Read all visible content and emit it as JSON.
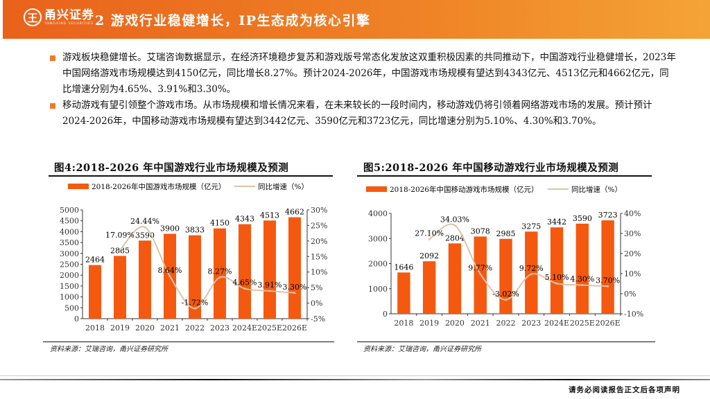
{
  "header": {
    "logo_mark": "王",
    "logo_cn": "甬兴证券",
    "logo_en": "YONGXING SECURITIES",
    "title": "2 游戏行业稳健增长，IP生态成为核心引擎"
  },
  "colors": {
    "bar": "#f4590f",
    "line": "#dcc3a8",
    "accent": "#ee7a2a"
  },
  "bullets": [
    "游戏板块稳健增长。艾瑞咨询数据显示，在经济环境稳步复苏和游戏版号常态化发放这双重积极因素的共同推动下，中国游戏行业稳健增长，2023年中国网络游戏市场规模达到4150亿元，同比增长8.27%。预计2024-2026年，中国游戏市场规模有望达到4343亿元、4513亿元和4662亿元，同比增速分别为4.65%、3.91%和3.30%。",
    "移动游戏有望引领整个游戏市场。从市场规模和增长情况来看，在未来较长的一段时间内，移动游戏仍将引领着网络游戏市场的发展。预计预计2024-2026年，中国移动游戏市场规模有望达到3442亿元、3590亿元和3723亿元，同比增速分别为5.10%、4.30%和3.70%。"
  ],
  "chart_data": [
    {
      "type": "bar",
      "title": "图4:2018-2026 年中国游戏行业市场规模及预测",
      "source": "资料来源：艾瑞咨询，甬兴证券研究所",
      "categories": [
        "2018",
        "2019",
        "2020",
        "2021",
        "2022",
        "2023",
        "2024E",
        "2025E",
        "2026E"
      ],
      "series": [
        {
          "name": "2018-2026年中国游戏市场规模（亿元）",
          "type": "bar",
          "axis": "left",
          "values": [
            2464,
            2885,
            3590,
            3900,
            3833,
            4150,
            4343,
            4513,
            4662
          ]
        },
        {
          "name": "同比增速（%）",
          "type": "line",
          "axis": "right",
          "values": [
            null,
            17.09,
            24.44,
            8.64,
            -1.72,
            8.27,
            4.65,
            3.91,
            3.3
          ]
        }
      ],
      "ylim": [
        0,
        5000
      ],
      "yticks": [
        0,
        500,
        1000,
        1500,
        2000,
        2500,
        3000,
        3500,
        4000,
        4500,
        5000
      ],
      "y2lim": [
        -5,
        30
      ],
      "y2ticks": [
        -5,
        0,
        5,
        10,
        15,
        20,
        25,
        30
      ],
      "grid": false,
      "legend": "top"
    },
    {
      "type": "bar",
      "title": "图5:2018-2026 年中国移动游戏行业市场规模及预测",
      "source": "资料来源：艾瑞咨询，甬兴证券研究所",
      "categories": [
        "2018",
        "2019",
        "2020",
        "2021",
        "2022",
        "2023",
        "2024E",
        "2025E",
        "2026E"
      ],
      "series": [
        {
          "name": "2018-2026年中国移动游戏市场规模（亿元）",
          "type": "bar",
          "axis": "left",
          "values": [
            1646,
            2092,
            2804,
            3078,
            2985,
            3275,
            3442,
            3590,
            3723
          ]
        },
        {
          "name": "同比增速（%）",
          "type": "line",
          "axis": "right",
          "values": [
            null,
            27.1,
            34.03,
            9.77,
            -3.02,
            9.72,
            5.1,
            4.3,
            3.7
          ]
        }
      ],
      "ylim": [
        0,
        4000
      ],
      "yticks": [
        0,
        1000,
        2000,
        3000,
        4000
      ],
      "y2lim": [
        -10,
        40
      ],
      "y2ticks": [
        -10,
        0,
        10,
        20,
        30,
        40
      ],
      "grid": false,
      "legend": "top"
    }
  ],
  "footer": "请务必阅读报告正文后各项声明"
}
